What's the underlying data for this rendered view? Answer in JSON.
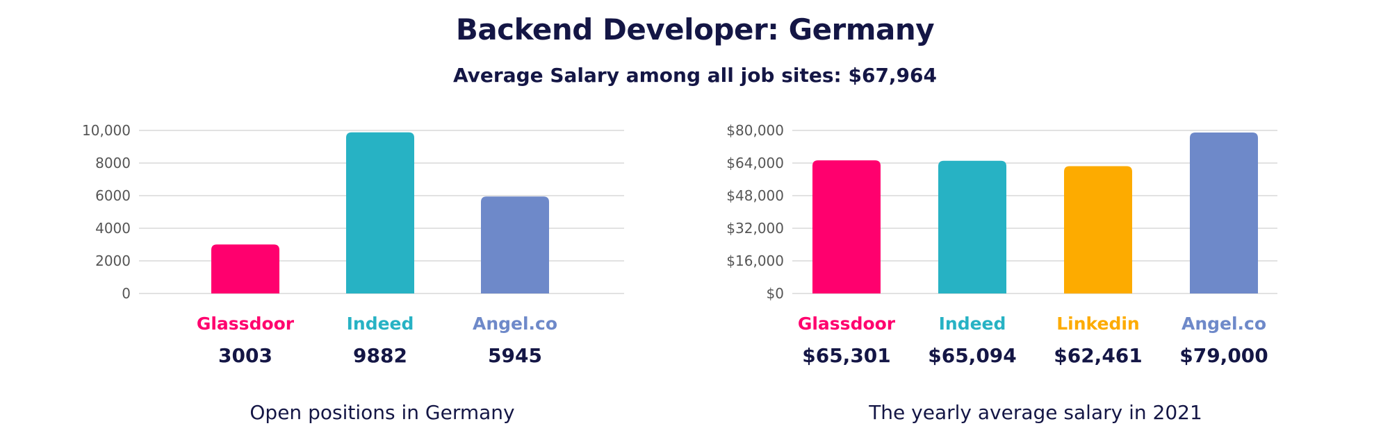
{
  "header": {
    "title": "Backend Developer: Germany",
    "subtitle": "Average Salary among all job sites: $67,964"
  },
  "chart_data": [
    {
      "type": "bar",
      "caption": "Open positions in Germany",
      "categories": [
        "Glassdoor",
        "Indeed",
        "Angel.co"
      ],
      "values": [
        3003,
        9882,
        5945
      ],
      "value_labels": [
        "3003",
        "9882",
        "5945"
      ],
      "colors": [
        "#ff006e",
        "#27b2c4",
        "#6e89c9"
      ],
      "ylim": [
        0,
        10000
      ],
      "yticks": [
        0,
        2000,
        4000,
        6000,
        8000,
        10000
      ],
      "ytick_labels": [
        "0",
        "2000",
        "4000",
        "6000",
        "8000",
        "10,000"
      ],
      "grid": true
    },
    {
      "type": "bar",
      "caption": "The yearly average salary in 2021",
      "categories": [
        "Glassdoor",
        "Indeed",
        "Linkedin",
        "Angel.co"
      ],
      "values": [
        65301,
        65094,
        62461,
        79000
      ],
      "value_labels": [
        "$65,301",
        "$65,094",
        "$62,461",
        "$79,000"
      ],
      "colors": [
        "#ff006e",
        "#27b2c4",
        "#fdab00",
        "#6e89c9"
      ],
      "ylim": [
        0,
        80000
      ],
      "yticks": [
        0,
        16000,
        32000,
        48000,
        64000,
        80000
      ],
      "ytick_labels": [
        "$0",
        "$16,000",
        "$32,000",
        "$48,000",
        "$64,000",
        "$80,000"
      ],
      "grid": true
    }
  ]
}
